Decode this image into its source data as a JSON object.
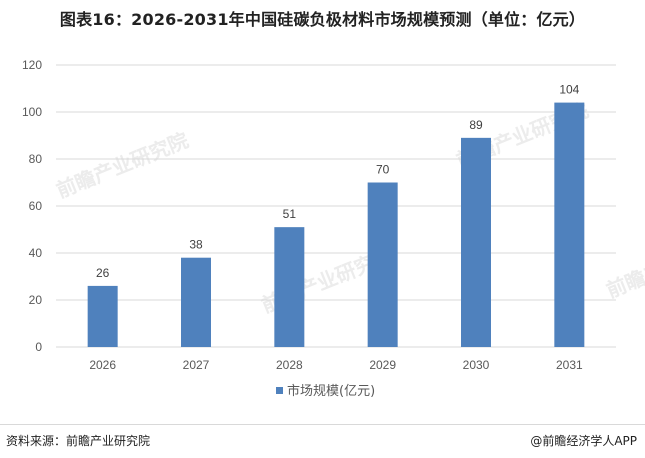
{
  "header": {
    "title": "图表16：2026-2031年中国硅碳负极材料市场规模预测（单位：亿元）"
  },
  "chart_data": {
    "type": "bar",
    "categories": [
      "2026",
      "2027",
      "2028",
      "2029",
      "2030",
      "2031"
    ],
    "series": [
      {
        "name": "市场规模(亿元)",
        "values": [
          26,
          38,
          51,
          70,
          89,
          104
        ],
        "color": "#4f81bd"
      }
    ],
    "ylim": [
      0,
      120
    ],
    "yticks": [
      0,
      20,
      40,
      60,
      80,
      100,
      120
    ],
    "grid": true,
    "legend_position": "bottom",
    "data_labels": true
  },
  "footer": {
    "source": "资料来源：前瞻产业研究院",
    "copyright": "@前瞻经济学人APP"
  },
  "watermark": "前瞻产业研究院"
}
